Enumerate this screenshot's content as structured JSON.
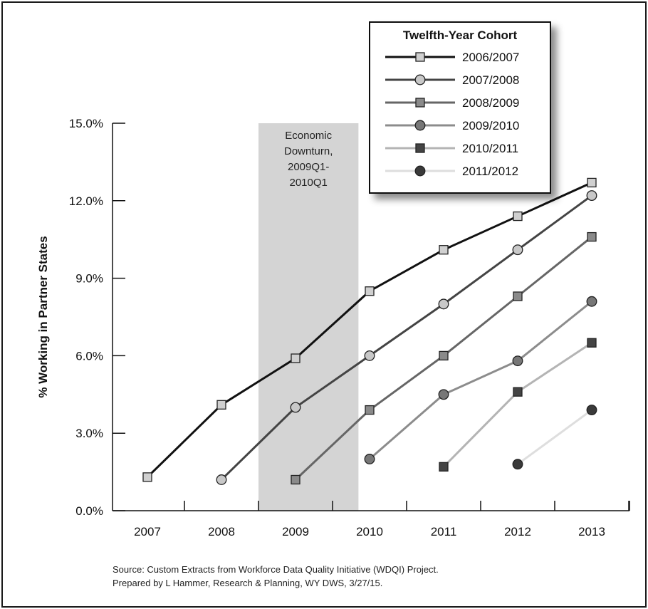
{
  "chart_data": {
    "type": "line",
    "title": "",
    "xlabel": "",
    "ylabel": "% Working in Partner States",
    "categories": [
      "2007",
      "2008",
      "2009",
      "2010",
      "2011",
      "2012",
      "2013"
    ],
    "ylim": [
      0,
      15
    ],
    "yticks": [
      "0.0%",
      "3.0%",
      "6.0%",
      "9.0%",
      "12.0%",
      "15.0%"
    ],
    "grid": false,
    "legend": {
      "title": "Twelfth-Year Cohort",
      "position": "top-right"
    },
    "series": [
      {
        "name": "2006/2007",
        "marker": "square",
        "color": "#111111",
        "fill": "#d0d0d0",
        "values": [
          1.3,
          4.1,
          5.9,
          8.5,
          10.1,
          11.4,
          12.7
        ]
      },
      {
        "name": "2007/2008",
        "marker": "circle",
        "color": "#444444",
        "fill": "#c8c8c8",
        "values": [
          null,
          1.2,
          4.0,
          6.0,
          8.0,
          10.1,
          12.2
        ]
      },
      {
        "name": "2008/2009",
        "marker": "square",
        "color": "#666666",
        "fill": "#8a8a8a",
        "values": [
          null,
          null,
          1.2,
          3.9,
          6.0,
          8.3,
          10.6
        ]
      },
      {
        "name": "2009/2010",
        "marker": "circle",
        "color": "#8c8c8c",
        "fill": "#777777",
        "values": [
          null,
          null,
          null,
          2.0,
          4.5,
          5.8,
          8.1
        ]
      },
      {
        "name": "2010/2011",
        "marker": "square",
        "color": "#b4b4b4",
        "fill": "#444444",
        "values": [
          null,
          null,
          null,
          null,
          1.7,
          4.6,
          6.5
        ]
      },
      {
        "name": "2011/2012",
        "marker": "circle",
        "color": "#dedede",
        "fill": "#3a3a3a",
        "values": [
          null,
          null,
          null,
          null,
          null,
          1.8,
          3.9
        ]
      }
    ],
    "annotations": [
      {
        "text": [
          "Economic",
          "Downturn,",
          "2009Q1-",
          "2010Q1"
        ],
        "from": 2008.5,
        "to": 2009.85,
        "color": "#d4d4d4"
      }
    ]
  },
  "source_note": [
    "Source: Custom Extracts from Workforce Data Quality Initiative (WDQI) Project.",
    "Prepared by L Hammer, Research & Planning, WY DWS, 3/27/15."
  ]
}
